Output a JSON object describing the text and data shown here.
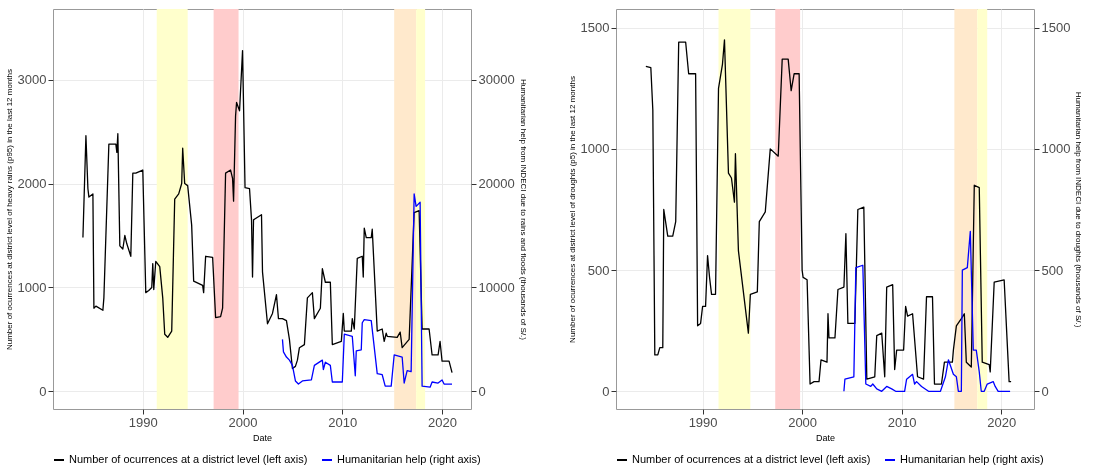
{
  "chart_data": [
    {
      "type": "line",
      "xlabel": "Date",
      "ylabel": "Number of ocurrences at district level of heavy rains (p95) in the last 12 months",
      "y2label": "Humanitarian help from INDECI due to rains and floods (thousands of S/.)",
      "xlim": [
        1981,
        2022.9
      ],
      "xticks": [
        1990,
        2000,
        2010,
        2020
      ],
      "ylim": [
        -170,
        3680
      ],
      "yticks": [
        0,
        1000,
        2000,
        3000
      ],
      "y2lim": [
        -1700,
        36800
      ],
      "y2ticks": [
        0,
        10000,
        20000,
        30000
      ],
      "grid": true,
      "legend": "bottom",
      "line_style": "solid",
      "marker": "none",
      "bands": [
        {
          "axis": "x",
          "from": 1991.4,
          "to": 1994.5,
          "color": "#ffffcc"
        },
        {
          "axis": "x",
          "from": 1997.1,
          "to": 1999.6,
          "color": "#ffcccc"
        },
        {
          "axis": "x",
          "from": 2015.2,
          "to": 2017.4,
          "color": "#ffe9cc"
        },
        {
          "axis": "x",
          "from": 2017.4,
          "to": 2018.3,
          "color": "#ffffcc"
        }
      ],
      "series": [
        {
          "name": "Number of ocurrences at a district level (left axis)",
          "color": "#000000",
          "x": [
            1984.0,
            1984.3,
            1984.5,
            1984.6,
            1985.0,
            1985.1,
            1985.3,
            1986.0,
            1986.1,
            1986.6,
            1987.3,
            1987.4,
            1987.5,
            1987.7,
            1988.0,
            1988.2,
            1988.4,
            1988.8,
            1989.0,
            1989.3,
            1990.0,
            1990.3,
            1990.6,
            1990.9,
            1991.0,
            1991.1,
            1991.3,
            1991.7,
            1992.0,
            1992.2,
            1992.5,
            1992.9,
            1993.2,
            1993.6,
            1993.9,
            1994.0,
            1994.2,
            1994.5,
            1994.9,
            1995.1,
            1996.0,
            1996.1,
            1996.3,
            1997.0,
            1997.3,
            1997.8,
            1998.0,
            1998.3,
            1998.8,
            1999.0,
            1999.1,
            1999.3,
            1999.4,
            1999.7,
            2000.0,
            2000.25,
            2000.7,
            2000.9,
            2001.0,
            2001.1,
            2001.9,
            2002.0,
            2002.5,
            2003.0,
            2003.4,
            2003.6,
            2004.0,
            2004.4,
            2004.7,
            2005.0,
            2005.3,
            2005.5,
            2005.7,
            2006.2,
            2006.5,
            2007.0,
            2007.2,
            2007.8,
            2008.0,
            2008.3,
            2008.8,
            2009.0,
            2009.9,
            2010.1,
            2010.2,
            2010.9,
            2011.0,
            2011.2,
            2011.5,
            2012.0,
            2012.1,
            2012.2,
            2012.4,
            2012.9,
            2013.0,
            2013.5,
            2014.0,
            2014.2,
            2014.4,
            2014.5,
            2015.5,
            2015.8,
            2016.0,
            2016.7,
            2017.2,
            2017.7,
            2018.0,
            2018.7,
            2019.0,
            2019.6,
            2019.8,
            2020.0,
            2020.7,
            2021.0
          ],
          "values": [
            1480,
            2460,
            1950,
            1870,
            1900,
            800,
            820,
            780,
            900,
            2380,
            2380,
            2300,
            2480,
            1400,
            1370,
            1500,
            1420,
            1300,
            2100,
            2100,
            2130,
            950,
            970,
            1000,
            1230,
            980,
            1250,
            1200,
            900,
            550,
            520,
            580,
            1850,
            1900,
            2000,
            2340,
            2000,
            1980,
            1600,
            1060,
            1020,
            950,
            1300,
            1290,
            710,
            720,
            800,
            2100,
            2130,
            2050,
            1830,
            2650,
            2780,
            2700,
            3280,
            1960,
            1950,
            1650,
            1100,
            1650,
            1700,
            1150,
            650,
            750,
            930,
            700,
            700,
            680,
            500,
            220,
            240,
            300,
            420,
            450,
            900,
            950,
            700,
            800,
            1180,
            1050,
            1050,
            450,
            480,
            750,
            580,
            580,
            700,
            600,
            1280,
            1300,
            1100,
            1570,
            1480,
            1480,
            1560,
            580,
            600,
            480,
            560,
            530,
            520,
            570,
            420,
            500,
            1720,
            1740,
            600,
            600,
            350,
            350,
            480,
            290,
            290,
            180
          ]
        },
        {
          "name": "Humanitarian help (right axis)",
          "color": "#0000ff",
          "axis": "y2",
          "x": [
            2004.0,
            2004.1,
            2004.4,
            2004.7,
            2005.0,
            2005.3,
            2005.6,
            2006.0,
            2006.9,
            2007.2,
            2008.0,
            2008.1,
            2008.3,
            2008.8,
            2009.0,
            2010.0,
            2010.2,
            2011.0,
            2011.3,
            2011.4,
            2011.9,
            2012.0,
            2012.2,
            2012.9,
            2013.5,
            2014.0,
            2014.3,
            2014.9,
            2015.2,
            2016.0,
            2016.2,
            2016.5,
            2016.9,
            2017.2,
            2017.4,
            2017.8,
            2018.0,
            2018.8,
            2019.0,
            2019.6,
            2020.0,
            2020.2,
            2021.0
          ],
          "values": [
            5000,
            3800,
            3300,
            3000,
            2500,
            1000,
            700,
            1000,
            1100,
            2500,
            3000,
            2100,
            2800,
            2500,
            900,
            900,
            5500,
            5300,
            1500,
            3900,
            4000,
            6600,
            6900,
            6800,
            1700,
            1600,
            500,
            500,
            3500,
            3300,
            800,
            2000,
            1900,
            19000,
            17800,
            18200,
            500,
            400,
            900,
            800,
            1100,
            700,
            700
          ]
        }
      ]
    },
    {
      "type": "line",
      "xlabel": "Date",
      "ylabel": "Number of ocurrences at district level of droughts (p5) in the last 12 months",
      "y2label": "Humanitarian help from INDECI due to droughts (thousands of S/.)",
      "xlim": [
        1981.3,
        2023.3
      ],
      "xticks": [
        1990,
        2000,
        2010,
        2020
      ],
      "ylim": [
        -73,
        1577
      ],
      "yticks": [
        0,
        500,
        1000,
        1500
      ],
      "y2lim": [
        -73,
        1577
      ],
      "y2ticks": [
        0,
        500,
        1000,
        1500
      ],
      "grid": true,
      "legend": "bottom",
      "line_style": "solid",
      "marker": "none",
      "bands": [
        {
          "axis": "x",
          "from": 1991.6,
          "to": 1994.8,
          "color": "#ffffcc"
        },
        {
          "axis": "x",
          "from": 1997.3,
          "to": 1999.8,
          "color": "#ffcccc"
        },
        {
          "axis": "x",
          "from": 2015.3,
          "to": 2017.6,
          "color": "#ffe9cc"
        },
        {
          "axis": "x",
          "from": 2017.6,
          "to": 2018.6,
          "color": "#ffffcc"
        }
      ],
      "series": [
        {
          "name": "Number of ocurrences at a district level (left axis)",
          "color": "#000000",
          "x": [
            1984.3,
            1984.8,
            1985.0,
            1985.2,
            1985.5,
            1985.7,
            1986.0,
            1986.1,
            1986.5,
            1987.0,
            1987.3,
            1987.6,
            1988.3,
            1988.6,
            1989.3,
            1989.5,
            1989.8,
            1990.0,
            1990.3,
            1990.5,
            1990.7,
            1990.9,
            1991.3,
            1991.6,
            1992.0,
            1992.2,
            1992.6,
            1992.9,
            1993.2,
            1993.3,
            1993.6,
            1994.6,
            1994.8,
            1995.5,
            1995.7,
            1996.3,
            1996.8,
            1997.6,
            1998.0,
            1998.6,
            1998.9,
            1999.2,
            1999.7,
            2000.0,
            2000.1,
            2000.5,
            2000.8,
            2001.2,
            2001.7,
            2001.9,
            2002.5,
            2002.6,
            2002.7,
            2003.3,
            2003.6,
            2004.2,
            2004.4,
            2004.6,
            2005.3,
            2005.6,
            2006.2,
            2006.5,
            2007.3,
            2007.5,
            2008.0,
            2008.3,
            2008.5,
            2009.1,
            2009.3,
            2009.5,
            2010.2,
            2010.4,
            2010.6,
            2011.1,
            2011.6,
            2012.2,
            2012.5,
            2013.1,
            2013.3,
            2014.0,
            2014.3,
            2015.1,
            2015.2,
            2015.5,
            2016.0,
            2016.3,
            2016.5,
            2017.0,
            2017.3,
            2017.8,
            2018.1,
            2018.8,
            2018.9,
            2019.3,
            2020.3,
            2020.8,
            2021.0
          ],
          "values": [
            1340,
            1335,
            1160,
            150,
            150,
            180,
            180,
            750,
            640,
            640,
            700,
            1440,
            1440,
            1310,
            1310,
            270,
            280,
            350,
            350,
            560,
            470,
            400,
            400,
            1250,
            1350,
            1450,
            900,
            880,
            780,
            980,
            580,
            240,
            400,
            410,
            700,
            740,
            1000,
            970,
            1370,
            1370,
            1240,
            1310,
            1310,
            500,
            470,
            460,
            30,
            40,
            40,
            130,
            120,
            320,
            220,
            220,
            420,
            430,
            650,
            280,
            280,
            750,
            760,
            50,
            60,
            230,
            240,
            60,
            430,
            440,
            90,
            170,
            170,
            350,
            310,
            320,
            60,
            50,
            390,
            390,
            30,
            30,
            120,
            120,
            170,
            270,
            300,
            320,
            120,
            100,
            850,
            840,
            120,
            110,
            80,
            450,
            460,
            40,
            40
          ]
        },
        {
          "name": "Humanitarian help (right axis)",
          "color": "#0000ff",
          "axis": "y2",
          "x": [
            2004.2,
            2004.3,
            2005.2,
            2005.4,
            2006.1,
            2006.4,
            2006.9,
            2007.1,
            2007.5,
            2008.0,
            2008.5,
            2009.0,
            2009.4,
            2010.3,
            2010.5,
            2011.1,
            2011.3,
            2011.5,
            2012.0,
            2012.7,
            2013.9,
            2014.4,
            2014.7,
            2015.2,
            2015.5,
            2015.7,
            2016.0,
            2016.1,
            2016.6,
            2016.9,
            2017.2,
            2017.5,
            2017.8,
            2018.0,
            2018.3,
            2018.6,
            2019.2,
            2019.4,
            2019.7,
            2020.9
          ],
          "values": [
            0,
            50,
            60,
            510,
            520,
            30,
            20,
            30,
            10,
            0,
            20,
            10,
            0,
            0,
            50,
            70,
            30,
            40,
            20,
            0,
            0,
            60,
            130,
            70,
            60,
            0,
            0,
            500,
            510,
            660,
            170,
            170,
            80,
            0,
            0,
            30,
            40,
            20,
            0,
            0
          ]
        }
      ]
    }
  ]
}
